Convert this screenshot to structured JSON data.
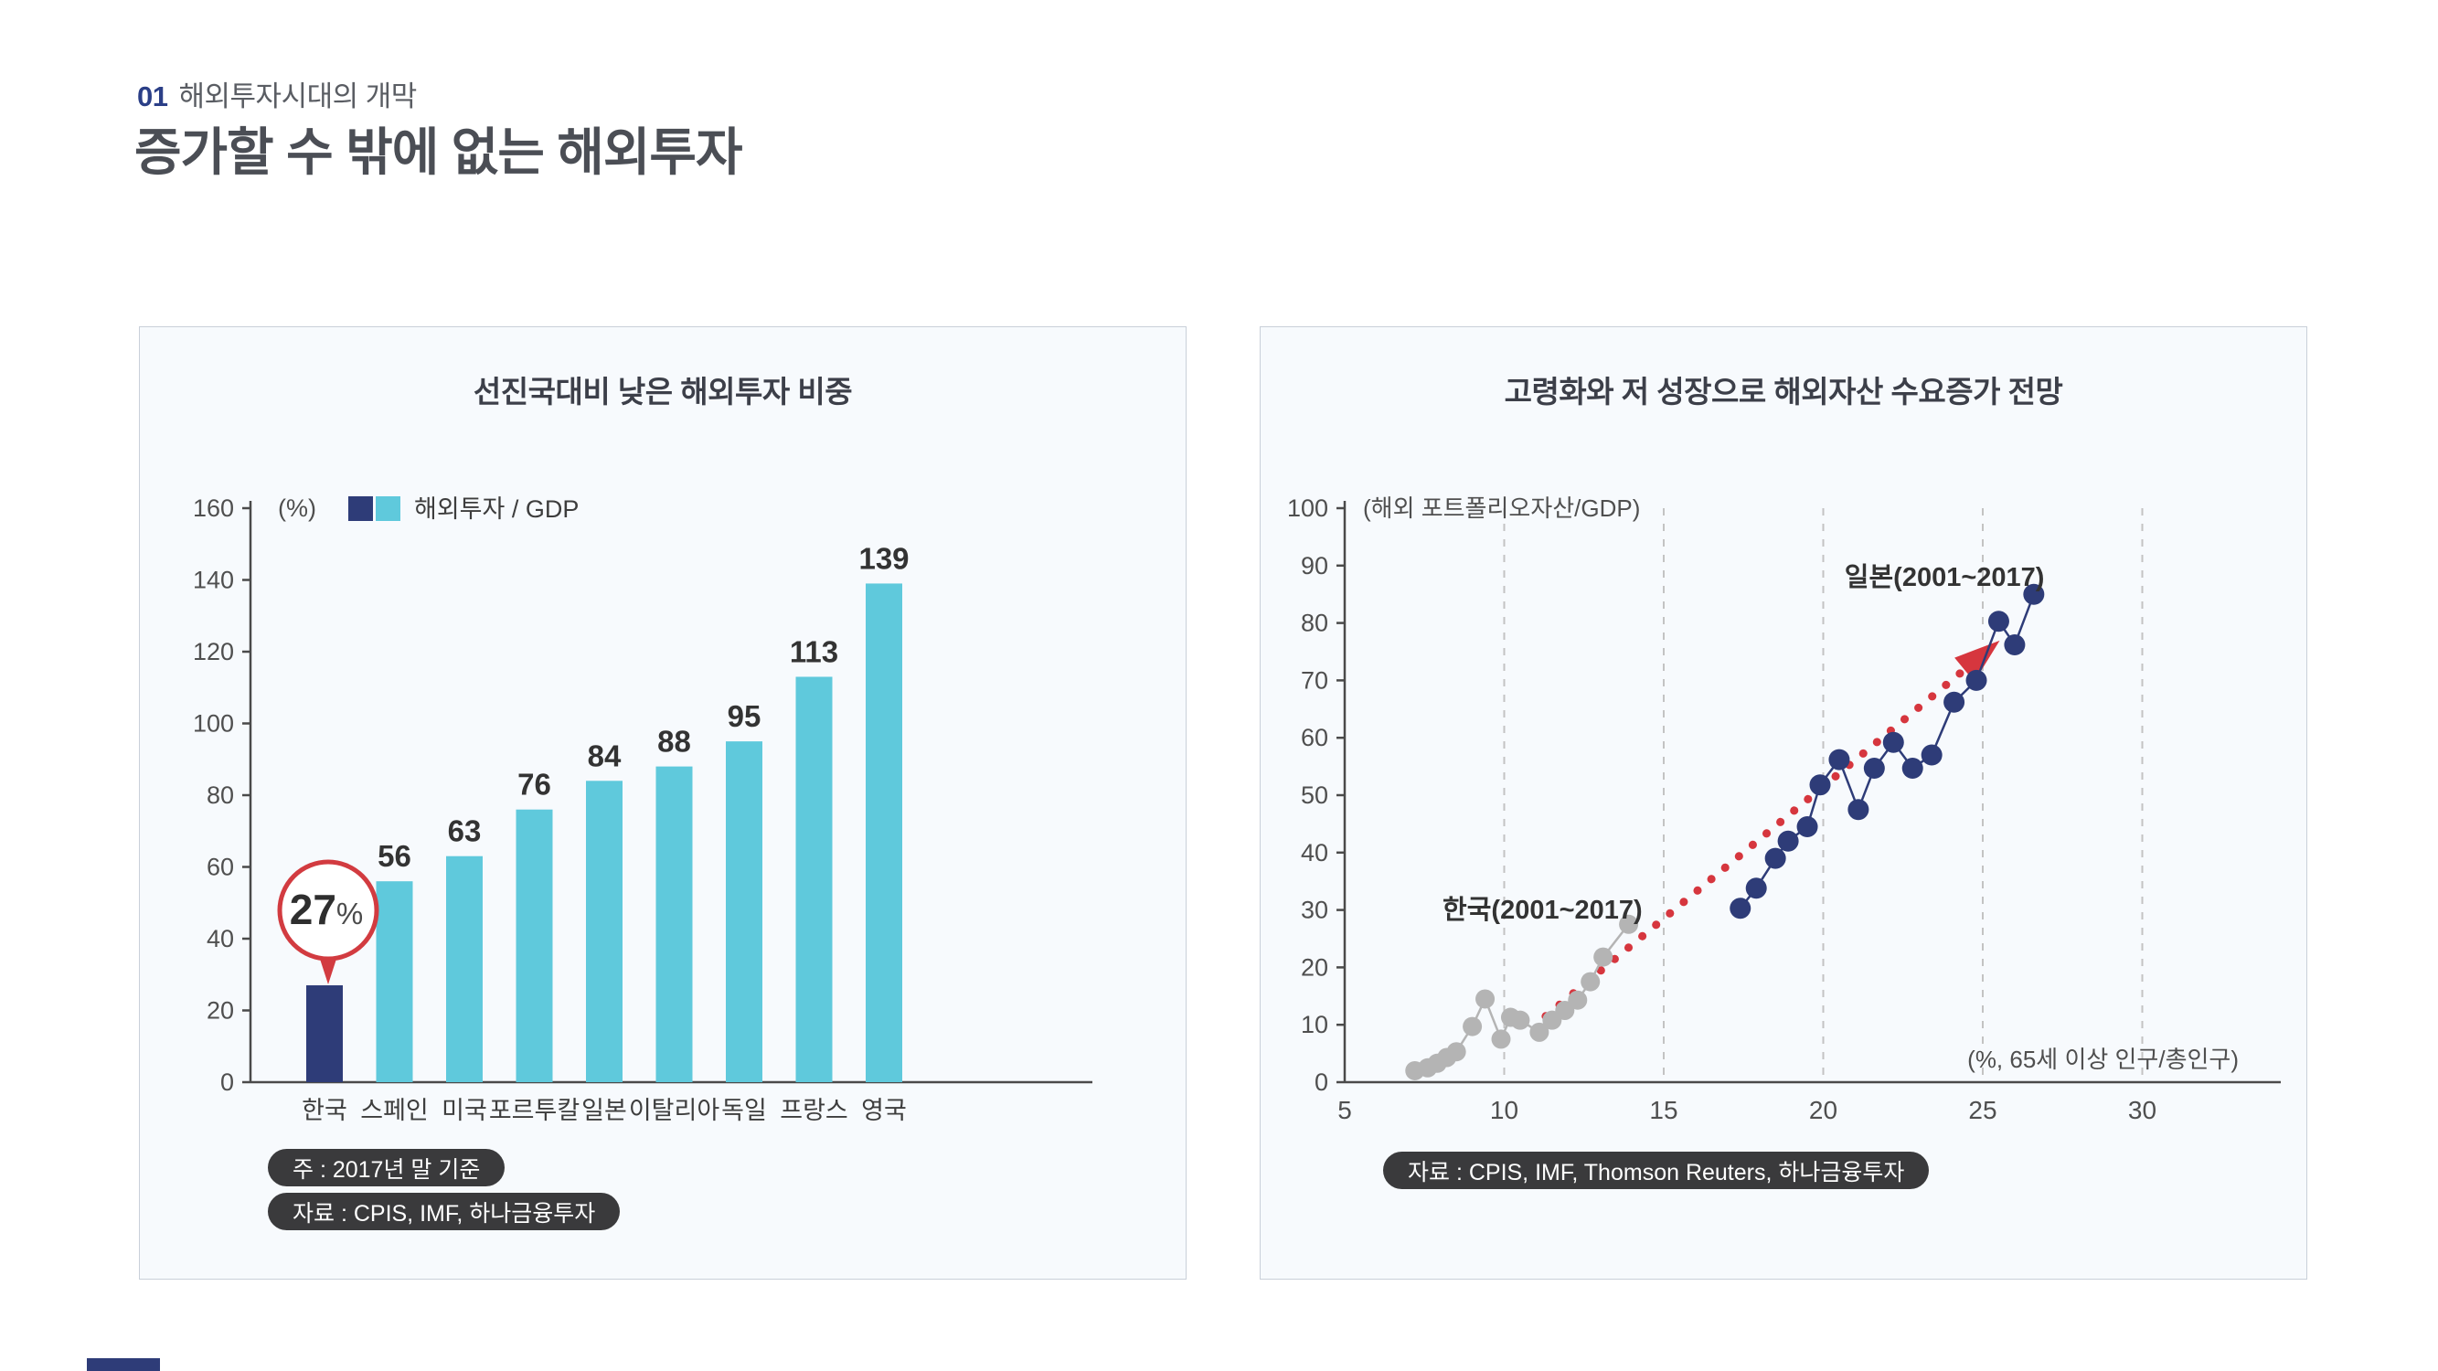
{
  "header": {
    "section_number": "01",
    "section_title": "해외투자시대의 개막",
    "main_title": "증가할 수 밖에 없는 해외투자"
  },
  "panels": {
    "left": {
      "notes": [
        "주 : 2017년 말 기준",
        "자료 : CPIS, IMF, 하나금융투자"
      ]
    },
    "right": {
      "notes": [
        "자료 : CPIS, IMF, Thomson Reuters, 하나금융투자"
      ]
    }
  },
  "colors": {
    "navy": "#2e3c78",
    "cyan": "#5fc9dc",
    "red": "#d23b40",
    "gray_series": "#b4b4b4",
    "axis": "#4a4a4a",
    "grid": "#c3c3c3",
    "text": "#3a3a3a"
  },
  "chart_data": [
    {
      "type": "bar",
      "title": "선진국대비 낮은 해외투자 비중",
      "unit_label": "(%)",
      "legend_label": "해외투자 / GDP",
      "categories": [
        "한국",
        "스페인",
        "미국",
        "포르투칼",
        "일본",
        "이탈리아",
        "독일",
        "프랑스",
        "영국"
      ],
      "values": [
        27,
        56,
        63,
        76,
        84,
        88,
        95,
        113,
        139
      ],
      "highlight_index": 0,
      "ylim": [
        0,
        160
      ],
      "ytick_step": 20,
      "annotation": {
        "number": "27",
        "suffix": "%",
        "target_category": "한국"
      }
    },
    {
      "type": "scatter",
      "title": "고령화와 저 성장으로 해외자산 수요증가 전망",
      "ylabel": "(해외 포트폴리오자산/GDP)",
      "xlabel": "(%, 65세 이상 인구/총인구)",
      "xlim": [
        5,
        34
      ],
      "ylim": [
        0,
        100
      ],
      "xticks": [
        5,
        10,
        15,
        20,
        25,
        30
      ],
      "gridlines_x": [
        10,
        15,
        20,
        25,
        30
      ],
      "ytick_step": 10,
      "series": [
        {
          "name": "한국(2001~2017)",
          "color_key": "gray_series",
          "label_pos": [
            11.2,
            28.5
          ],
          "points": [
            [
              7.2,
              2
            ],
            [
              7.6,
              2.5
            ],
            [
              7.9,
              3.3
            ],
            [
              8.2,
              4.3
            ],
            [
              8.5,
              5.3
            ],
            [
              9.0,
              9.7
            ],
            [
              9.4,
              14.5
            ],
            [
              9.9,
              7.5
            ],
            [
              10.2,
              11.3
            ],
            [
              10.5,
              10.8
            ],
            [
              11.1,
              8.7
            ],
            [
              11.5,
              10.8
            ],
            [
              11.9,
              12.5
            ],
            [
              12.3,
              14.3
            ],
            [
              12.7,
              17.5
            ],
            [
              13.1,
              21.8
            ],
            [
              13.9,
              27.5
            ]
          ]
        },
        {
          "name": "일본(2001~2017)",
          "color_key": "navy",
          "label_pos": [
            23.8,
            86.5
          ],
          "points": [
            [
              17.4,
              30.3
            ],
            [
              17.9,
              33.8
            ],
            [
              18.5,
              39
            ],
            [
              18.9,
              42
            ],
            [
              19.5,
              44.5
            ],
            [
              19.9,
              51.8
            ],
            [
              20.5,
              56.2
            ],
            [
              21.1,
              47.5
            ],
            [
              21.6,
              54.7
            ],
            [
              22.2,
              59.2
            ],
            [
              22.8,
              54.7
            ],
            [
              23.4,
              57
            ],
            [
              24.1,
              66.2
            ],
            [
              24.8,
              70
            ],
            [
              25.5,
              80.3
            ],
            [
              26.0,
              76.2
            ],
            [
              26.6,
              85
            ]
          ]
        }
      ],
      "trend_arrow": {
        "from": [
          11.3,
          11.5
        ],
        "to": [
          25.0,
          74.5
        ]
      }
    }
  ]
}
